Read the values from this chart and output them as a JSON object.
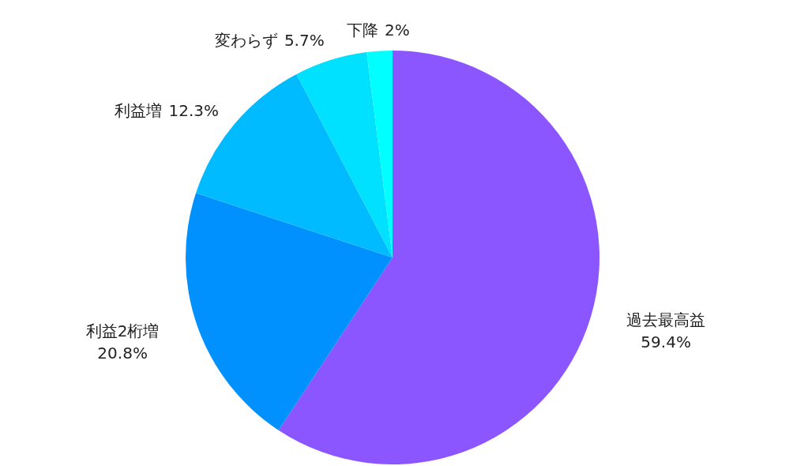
{
  "chart_data": {
    "type": "pie",
    "categories": [
      "過去最高益",
      "利益2桁増",
      "利益増",
      "変わらず",
      "下降"
    ],
    "values": [
      59.4,
      20.8,
      12.3,
      5.7,
      2
    ],
    "colors": [
      "#8b55ff",
      "#0091ff",
      "#00bbff",
      "#00e1ff",
      "#00ffff"
    ],
    "value_labels": [
      "59.4%",
      "20.8%",
      "12.3%",
      "5.7%",
      "2%"
    ]
  }
}
